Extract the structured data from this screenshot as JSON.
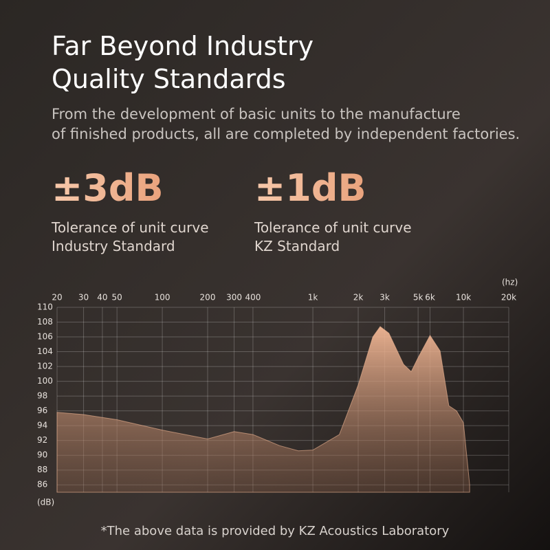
{
  "header": {
    "title": [
      "Far Beyond Industry",
      "Quality Standards"
    ],
    "subtitle": [
      "From the development of basic units to the manufacture",
      "of finished products, all are completed by independent factories."
    ]
  },
  "stats": [
    {
      "value": "±3dB",
      "lines": [
        "Tolerance of unit curve",
        "Industry Standard"
      ]
    },
    {
      "value": "±1dB",
      "lines": [
        "Tolerance of unit curve",
        "KZ Standard"
      ]
    }
  ],
  "footnote": "*The above data is provided by KZ Acoustics Laboratory",
  "chart_data": {
    "type": "area",
    "x_label": "(hz)",
    "y_label": "(dB)",
    "log_x": true,
    "grid": true,
    "color": "#f2b795",
    "x": [
      20,
      30,
      50,
      100,
      200,
      300,
      400,
      600,
      800,
      1000,
      1500,
      2000,
      2500,
      2800,
      3200,
      4000,
      4500,
      5000,
      6000,
      7000,
      8000,
      9000,
      10000,
      11000
    ],
    "values": [
      95.8,
      95.5,
      94.8,
      93.4,
      92.2,
      93.2,
      92.8,
      91.3,
      90.6,
      90.7,
      92.8,
      99.5,
      106.0,
      107.4,
      106.5,
      102.3,
      101.3,
      103.2,
      106.2,
      104.1,
      96.7,
      96.0,
      94.4,
      86.0
    ],
    "xlim": [
      20,
      20000
    ],
    "xticks": [
      20,
      30,
      40,
      50,
      100,
      200,
      300,
      400,
      {
        "value": 1000,
        "label": "1k"
      },
      {
        "value": 2000,
        "label": "2k"
      },
      {
        "value": 3000,
        "label": "3k"
      },
      {
        "value": 5000,
        "label": "5k"
      },
      {
        "value": 6000,
        "label": "6k"
      },
      {
        "value": 10000,
        "label": "10k"
      },
      {
        "value": 20000,
        "label": "20k"
      }
    ],
    "ylim": [
      85,
      110
    ],
    "yticks": [
      86,
      88,
      90,
      92,
      94,
      96,
      98,
      100,
      102,
      104,
      106,
      108,
      110
    ]
  }
}
